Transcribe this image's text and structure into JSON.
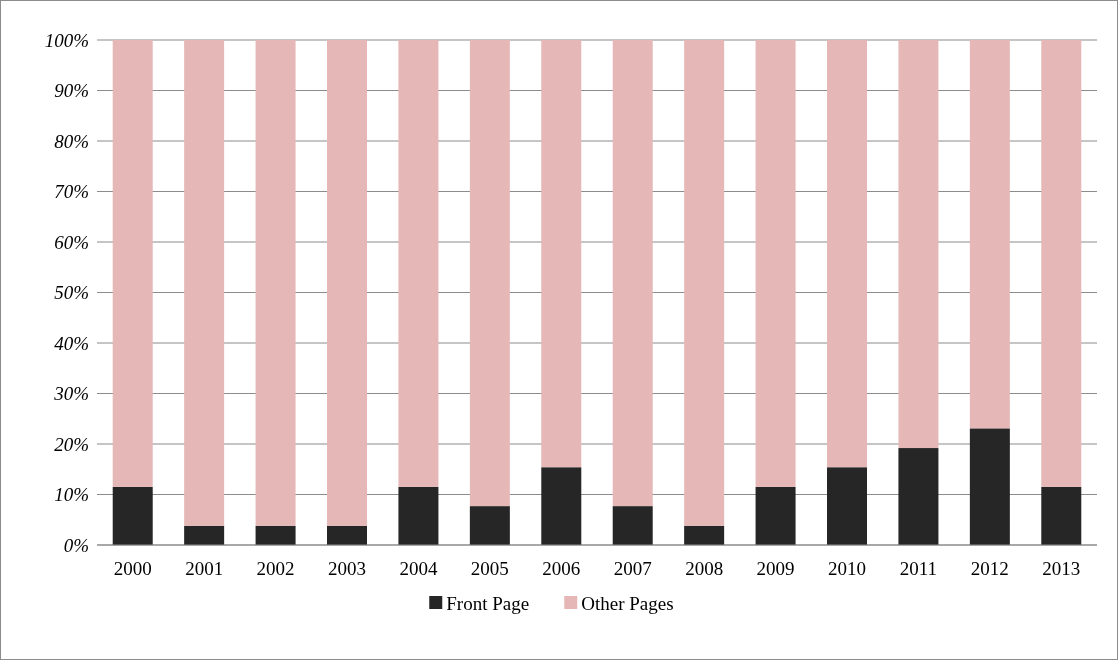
{
  "chart_data": {
    "type": "bar",
    "stacked": true,
    "categories": [
      "2000",
      "2001",
      "2002",
      "2003",
      "2004",
      "2005",
      "2006",
      "2007",
      "2008",
      "2009",
      "2010",
      "2011",
      "2012",
      "2013"
    ],
    "series": [
      {
        "name": "Front Page",
        "color": "#262626",
        "values": [
          11.5,
          3.8,
          3.8,
          3.8,
          11.5,
          7.7,
          15.4,
          7.7,
          3.8,
          11.5,
          15.4,
          19.2,
          23.1,
          11.5
        ]
      },
      {
        "name": "Other Pages",
        "color": "#e6b7b7",
        "values": [
          88.5,
          96.2,
          96.2,
          96.2,
          88.5,
          92.3,
          84.6,
          92.3,
          96.2,
          88.5,
          84.6,
          80.8,
          76.9,
          88.5
        ]
      }
    ],
    "ylim": [
      0,
      100
    ],
    "yticks": [
      {
        "value": 0,
        "label": "0%"
      },
      {
        "value": 10,
        "label": "10%"
      },
      {
        "value": 20,
        "label": "20%"
      },
      {
        "value": 30,
        "label": "30%"
      },
      {
        "value": 40,
        "label": "40%"
      },
      {
        "value": 50,
        "label": "50%"
      },
      {
        "value": 60,
        "label": "60%"
      },
      {
        "value": 70,
        "label": "70%"
      },
      {
        "value": 80,
        "label": "80%"
      },
      {
        "value": 90,
        "label": "90%"
      },
      {
        "value": 100,
        "label": "100%"
      }
    ],
    "grid": "y",
    "legend": "bottom"
  }
}
